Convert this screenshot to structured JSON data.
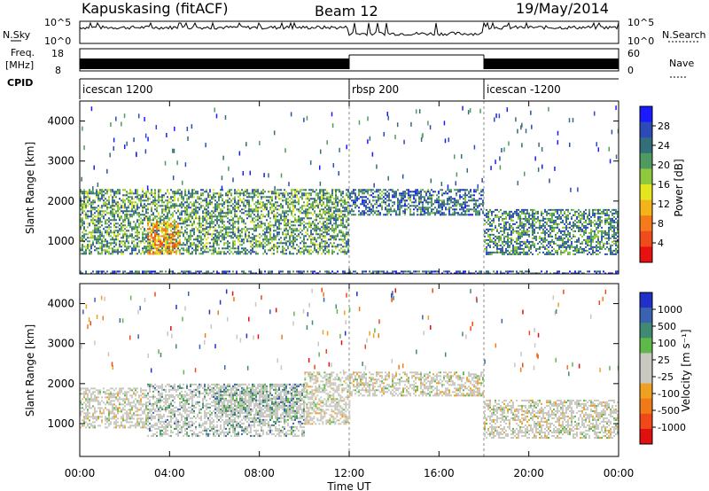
{
  "header": {
    "station": "Kapuskasing (fitACF)",
    "beam": "Beam 12",
    "date": "19/May/2014"
  },
  "panels": {
    "nsky_label": "N.Sky",
    "nsearch_label": "N.Search",
    "freq_label_1": "Freq.",
    "freq_label_2": "[MHz]",
    "nave_label": "Nave",
    "cpid_label": "CPID",
    "nsky_ticks": [
      "10^5",
      "10^0"
    ],
    "nsearch_ticks": [
      "10^5",
      "10^0"
    ],
    "freq_ticks": [
      "18",
      "8"
    ],
    "nave_ticks": [
      "60",
      "0"
    ]
  },
  "cpid_segments": [
    {
      "label": "icescan 1200",
      "start_hour": 0
    },
    {
      "label": "rbsp 200",
      "start_hour": 12
    },
    {
      "label": "icescan -1200",
      "start_hour": 18
    }
  ],
  "power_panel": {
    "ylabel": "Slant Range [km]",
    "yticks": [
      "4000",
      "3000",
      "2000",
      "1000"
    ],
    "colorbar_label": "Power [dB]",
    "colorbar_ticks": [
      "28",
      "24",
      "20",
      "16",
      "12",
      "8",
      "4"
    ],
    "colorbar_colors": [
      "#1a1aff",
      "#2c4ab8",
      "#336e7a",
      "#4f9a5e",
      "#8fc83c",
      "#e6e61e",
      "#f5b31a",
      "#f57a1a",
      "#f04b1a",
      "#e81010"
    ]
  },
  "velocity_panel": {
    "ylabel": "Slant Range [km]",
    "yticks": [
      "4000",
      "3000",
      "2000",
      "1000"
    ],
    "colorbar_label": "Velocity [m s⁻¹]",
    "colorbar_ticks": [
      "1000",
      "500",
      "100",
      "25",
      "-25",
      "-100",
      "-500",
      "-1000"
    ],
    "colorbar_colors": [
      "#2030c8",
      "#3a62b0",
      "#3f8a72",
      "#5fb84a",
      "#c8c8c0",
      "#c8c8c0",
      "#f0a020",
      "#f07a18",
      "#f04818",
      "#e01010"
    ]
  },
  "xaxis": {
    "label": "Time UT",
    "ticks": [
      "00:00",
      "04:00",
      "08:00",
      "12:00",
      "16:00",
      "20:00",
      "00:00"
    ]
  },
  "chart_data": [
    {
      "type": "heatmap",
      "title": "",
      "xlabel": "Time UT",
      "ylabel": "Slant Range [km]",
      "x_range_hours": [
        0,
        24
      ],
      "ylim": [
        180,
        4500
      ],
      "colorbar": {
        "label": "Power [dB]",
        "range": [
          0,
          30
        ]
      },
      "regions": [
        {
          "t0": 0.0,
          "t1": 12.0,
          "r0": 700,
          "r1": 2300,
          "level": 0.35
        },
        {
          "t0": 3.0,
          "t1": 4.5,
          "r0": 700,
          "r1": 1500,
          "level": 0.7
        },
        {
          "t0": 12.0,
          "t1": 18.0,
          "r0": 1650,
          "r1": 2300,
          "level": 0.25
        },
        {
          "t0": 18.0,
          "t1": 24.0,
          "r0": 650,
          "r1": 1800,
          "level": 0.3
        },
        {
          "t0": 0.0,
          "t1": 24.0,
          "r0": 180,
          "r1": 260,
          "level": 0.2
        }
      ]
    },
    {
      "type": "heatmap",
      "title": "",
      "xlabel": "Time UT",
      "ylabel": "Slant Range [km]",
      "x_range_hours": [
        0,
        24
      ],
      "ylim": [
        180,
        4500
      ],
      "colorbar": {
        "label": "Velocity [m s⁻¹]",
        "range": [
          -1000,
          1000
        ]
      },
      "regions": [
        {
          "t0": 0.0,
          "t1": 3.0,
          "r0": 900,
          "r1": 1900,
          "level": 0.5
        },
        {
          "t0": 3.0,
          "t1": 10.0,
          "r0": 700,
          "r1": 2000,
          "level": 0.35
        },
        {
          "t0": 6.0,
          "t1": 10.0,
          "r0": 1200,
          "r1": 2000,
          "level": 0.3
        },
        {
          "t0": 10.0,
          "t1": 12.0,
          "r0": 1000,
          "r1": 2300,
          "level": 0.5
        },
        {
          "t0": 12.0,
          "t1": 18.0,
          "r0": 1700,
          "r1": 2300,
          "level": 0.5
        },
        {
          "t0": 18.0,
          "t1": 24.0,
          "r0": 650,
          "r1": 1600,
          "level": 0.5
        }
      ]
    }
  ]
}
